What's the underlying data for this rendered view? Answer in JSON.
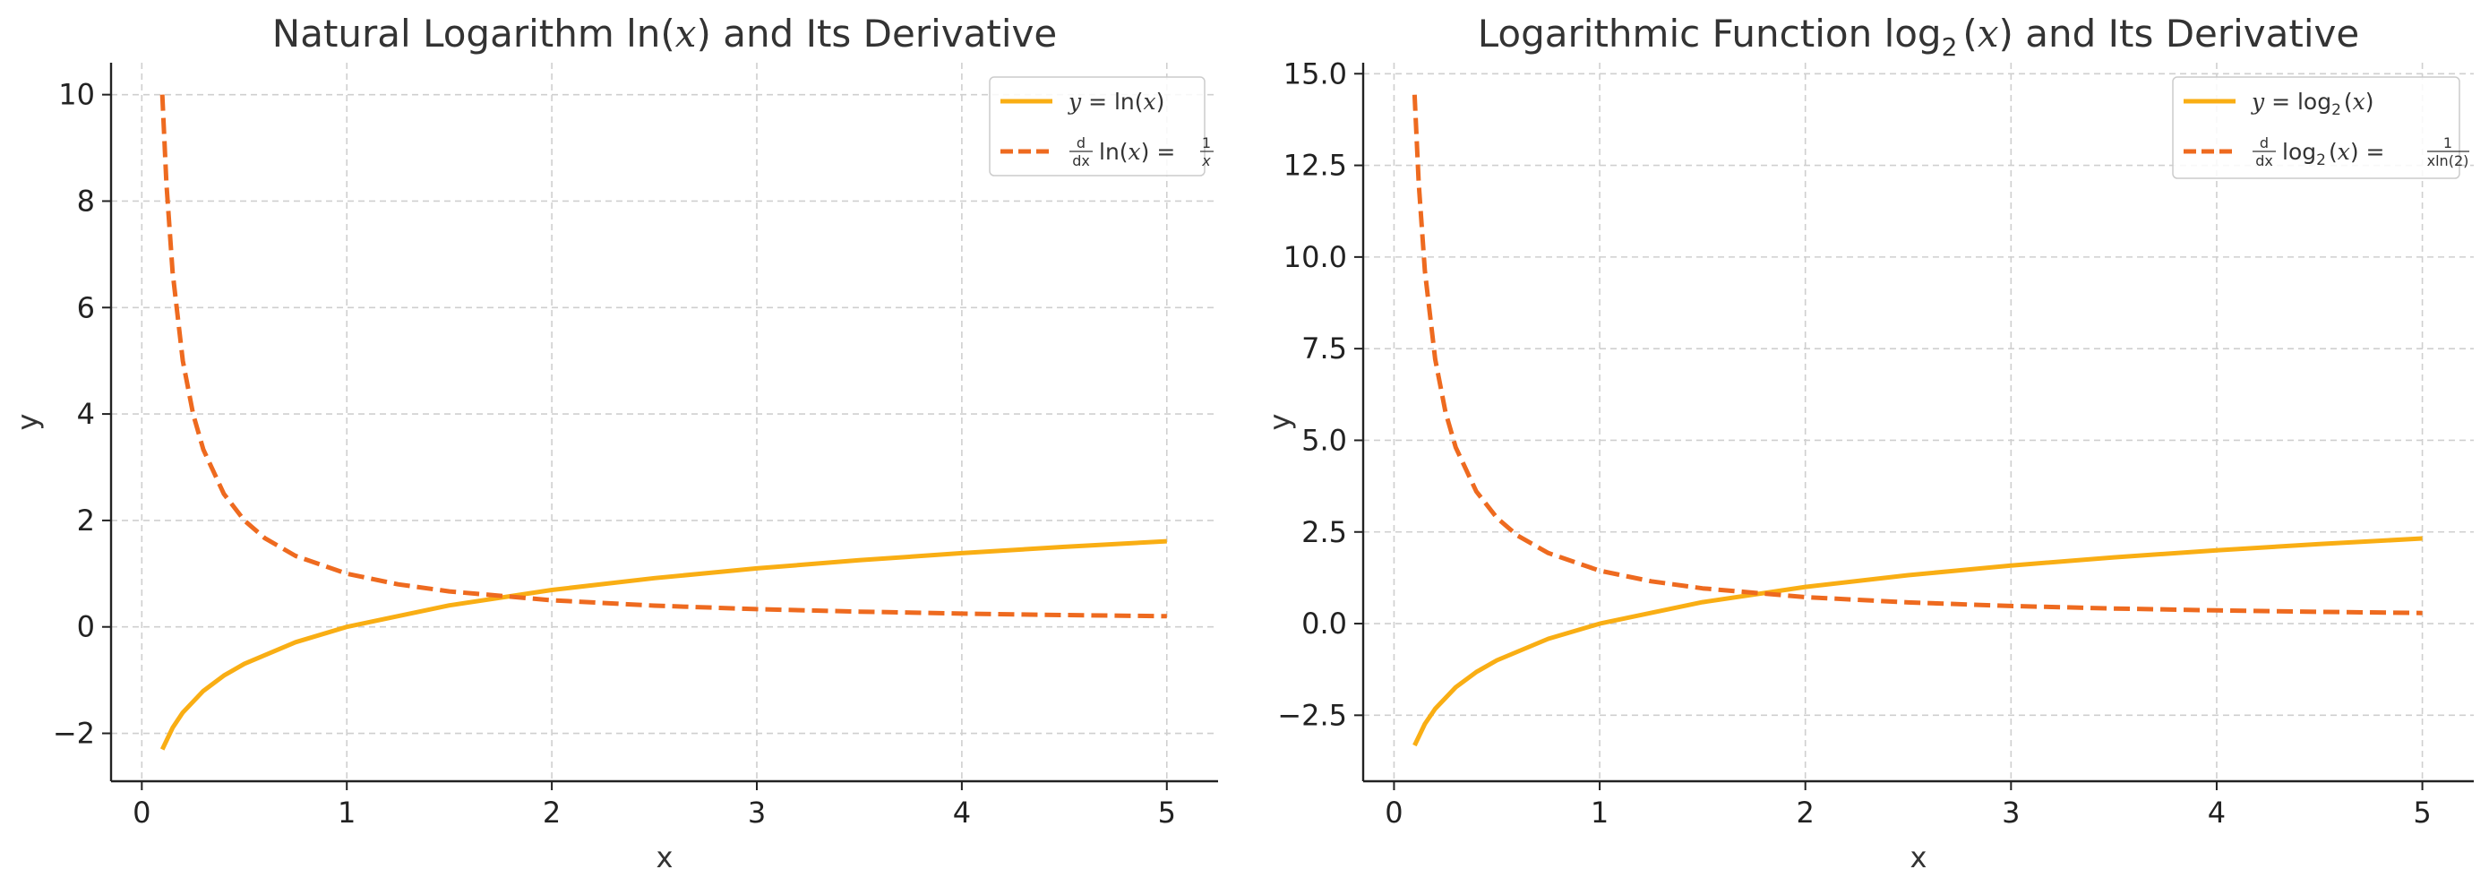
{
  "chart_data": [
    {
      "type": "line",
      "title_parts": [
        "Natural Logarithm ln(",
        "x",
        ") and Its Derivative"
      ],
      "xlabel": "x",
      "ylabel": "y",
      "xlim": [
        -0.15,
        5.25
      ],
      "ylim": [
        -2.9,
        10.6
      ],
      "xticks": [
        0,
        1,
        2,
        3,
        4,
        5
      ],
      "xtick_labels": [
        "0",
        "1",
        "2",
        "3",
        "4",
        "5"
      ],
      "yticks": [
        -2,
        0,
        2,
        4,
        6,
        8,
        10
      ],
      "ytick_labels": [
        "−2",
        "0",
        "2",
        "4",
        "6",
        "8",
        "10"
      ],
      "grid": true,
      "legend_position": "top-right",
      "series": [
        {
          "legend_parts": [
            "y",
            " = ln(",
            "x",
            ")"
          ],
          "style": "solid",
          "color": "#F9AE14",
          "x": [
            0.1,
            0.15,
            0.2,
            0.3,
            0.4,
            0.5,
            0.75,
            1,
            1.5,
            2,
            2.5,
            3,
            3.5,
            4,
            4.5,
            5
          ],
          "y": [
            -2.303,
            -1.897,
            -1.609,
            -1.204,
            -0.916,
            -0.693,
            -0.288,
            0.0,
            0.405,
            0.693,
            0.916,
            1.099,
            1.253,
            1.386,
            1.504,
            1.609
          ]
        },
        {
          "legend_parts": [
            "d",
            "dx",
            "ln(",
            "x",
            ") = ",
            "1",
            "x"
          ],
          "style": "dashed",
          "color": "#EE6A1F",
          "x": [
            0.1,
            0.12,
            0.15,
            0.2,
            0.25,
            0.3,
            0.4,
            0.5,
            0.6,
            0.75,
            1,
            1.25,
            1.5,
            2,
            2.5,
            3,
            3.5,
            4,
            4.5,
            5
          ],
          "y": [
            10.0,
            8.333,
            6.667,
            5.0,
            4.0,
            3.333,
            2.5,
            2.0,
            1.667,
            1.333,
            1.0,
            0.8,
            0.667,
            0.5,
            0.4,
            0.333,
            0.286,
            0.25,
            0.222,
            0.2
          ]
        }
      ]
    },
    {
      "type": "line",
      "title_parts": [
        "Logarithmic Function log",
        "2",
        "(",
        "x",
        ") and Its Derivative"
      ],
      "xlabel": "x",
      "ylabel": "y",
      "xlim": [
        -0.15,
        5.25
      ],
      "ylim": [
        -4.3,
        15.3
      ],
      "xticks": [
        0,
        1,
        2,
        3,
        4,
        5
      ],
      "xtick_labels": [
        "0",
        "1",
        "2",
        "3",
        "4",
        "5"
      ],
      "yticks": [
        -2.5,
        0,
        2.5,
        5,
        7.5,
        10,
        12.5,
        15
      ],
      "ytick_labels": [
        "−2.5",
        "0.0",
        "2.5",
        "5.0",
        "7.5",
        "10.0",
        "12.5",
        "15.0"
      ],
      "grid": true,
      "legend_position": "top-right",
      "series": [
        {
          "legend_parts": [
            "y",
            " = log",
            "2",
            "(",
            "x",
            ")"
          ],
          "style": "solid",
          "color": "#F9AE14",
          "x": [
            0.1,
            0.15,
            0.2,
            0.3,
            0.4,
            0.5,
            0.75,
            1,
            1.5,
            2,
            2.5,
            3,
            3.5,
            4,
            4.5,
            5
          ],
          "y": [
            -3.322,
            -2.737,
            -2.322,
            -1.737,
            -1.322,
            -1.0,
            -0.415,
            0.0,
            0.585,
            1.0,
            1.322,
            1.585,
            1.807,
            2.0,
            2.17,
            2.322
          ]
        },
        {
          "legend_parts": [
            "d",
            "dx",
            "log",
            "2",
            "(",
            "x",
            ") = ",
            "1",
            "x",
            "ln(2)"
          ],
          "style": "dashed",
          "color": "#EE6A1F",
          "x": [
            0.1,
            0.12,
            0.15,
            0.2,
            0.25,
            0.3,
            0.4,
            0.5,
            0.6,
            0.75,
            1,
            1.25,
            1.5,
            2,
            2.5,
            3,
            3.5,
            4,
            4.5,
            5
          ],
          "y": [
            14.427,
            12.023,
            9.618,
            7.213,
            5.771,
            4.809,
            3.607,
            2.885,
            2.404,
            1.924,
            1.443,
            1.154,
            0.962,
            0.721,
            0.577,
            0.481,
            0.412,
            0.361,
            0.321,
            0.289
          ]
        }
      ]
    }
  ]
}
